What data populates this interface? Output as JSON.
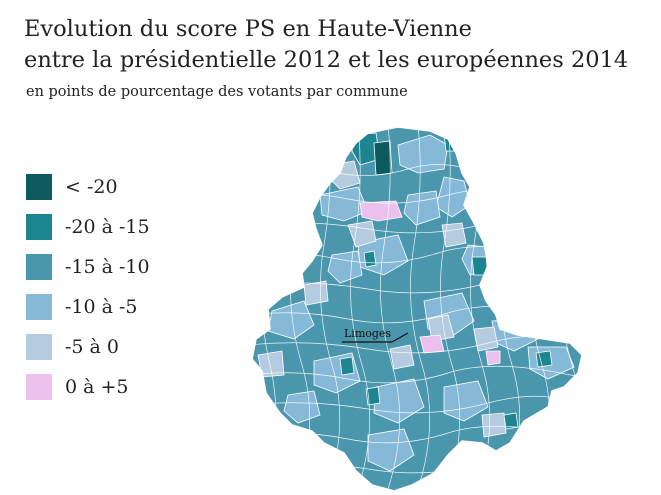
{
  "title_line1": "Evolution du score PS en Haute-Vienne",
  "title_line2": "entre la présidentielle 2012 et les européennes 2014",
  "subtitle": "en points de pourcentage des votants par commune",
  "legend": [
    {
      "label": "< -20",
      "color": "#0d5a5e"
    },
    {
      "label": "-20 à -15",
      "color": "#1d8590"
    },
    {
      "label": "-15 à -10",
      "color": "#4a96ad"
    },
    {
      "label": "-10 à -5",
      "color": "#86b9d8"
    },
    {
      "label": "-5 à 0",
      "color": "#b5cbe0"
    },
    {
      "label": "0 à +5",
      "color": "#ecc0ec"
    }
  ],
  "map": {
    "city_label": "Limoges",
    "outline_color": "#ffffff"
  }
}
